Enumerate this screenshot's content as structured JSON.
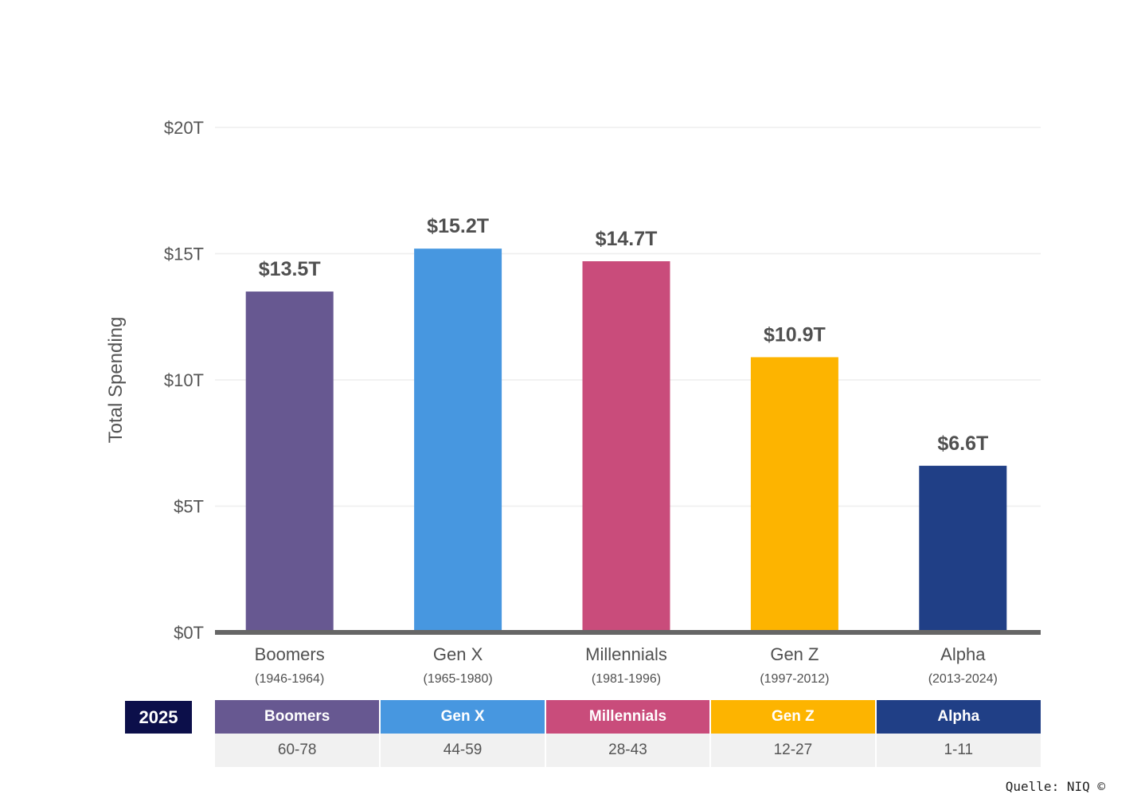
{
  "chart_data": {
    "type": "bar",
    "ylabel": "Total Spending",
    "ylim": [
      0,
      20
    ],
    "yticks": [
      "$0T",
      "$5T",
      "$10T",
      "$15T",
      "$20T"
    ],
    "ytick_values": [
      0,
      5,
      10,
      15,
      20
    ],
    "grid": true,
    "categories": [
      "Boomers",
      "Gen X",
      "Millennials",
      "Gen Z",
      "Alpha"
    ],
    "years": [
      "(1946-1964)",
      "(1965-1980)",
      "(1981-1996)",
      "(1997-2012)",
      "(2013-2024)"
    ],
    "values": [
      13.5,
      15.2,
      14.7,
      10.9,
      6.6
    ],
    "value_labels": [
      "$13.5T",
      "$15.2T",
      "$14.7T",
      "$10.9T",
      "$6.6T"
    ],
    "colors": [
      "#675891",
      "#4797e0",
      "#c94c7b",
      "#fdb400",
      "#203f86"
    ]
  },
  "age_table": {
    "year": "2025",
    "generations": [
      "Boomers",
      "Gen X",
      "Millennials",
      "Gen Z",
      "Alpha"
    ],
    "ages": [
      "60-78",
      "44-59",
      "28-43",
      "12-27",
      "1-11"
    ]
  },
  "source": "Quelle: NIQ ©"
}
